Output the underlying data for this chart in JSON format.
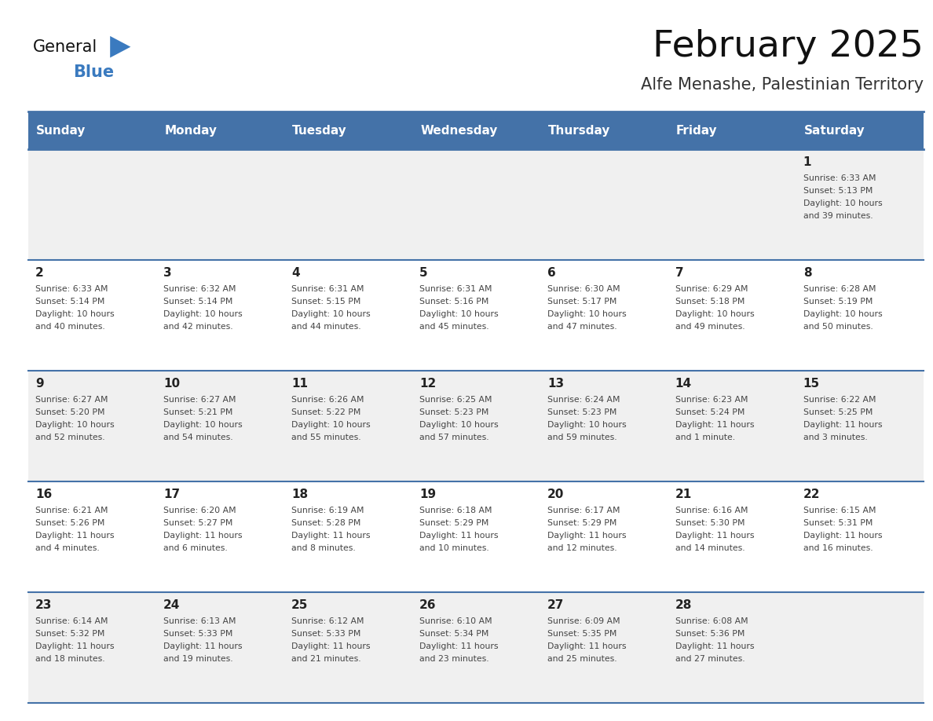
{
  "title": "February 2025",
  "subtitle": "Alfe Menashe, Palestinian Territory",
  "days_of_week": [
    "Sunday",
    "Monday",
    "Tuesday",
    "Wednesday",
    "Thursday",
    "Friday",
    "Saturday"
  ],
  "header_bg": "#4472a8",
  "header_text": "#ffffff",
  "cell_bg_odd": "#f0f0f0",
  "cell_bg_even": "#ffffff",
  "border_color": "#4472a8",
  "text_color": "#444444",
  "day_num_color": "#222222",
  "calendar_data": [
    [
      null,
      null,
      null,
      null,
      null,
      null,
      {
        "day": 1,
        "sunrise": "6:33 AM",
        "sunset": "5:13 PM",
        "daylight": "10 hours and 39 minutes."
      }
    ],
    [
      {
        "day": 2,
        "sunrise": "6:33 AM",
        "sunset": "5:14 PM",
        "daylight": "10 hours and 40 minutes."
      },
      {
        "day": 3,
        "sunrise": "6:32 AM",
        "sunset": "5:14 PM",
        "daylight": "10 hours and 42 minutes."
      },
      {
        "day": 4,
        "sunrise": "6:31 AM",
        "sunset": "5:15 PM",
        "daylight": "10 hours and 44 minutes."
      },
      {
        "day": 5,
        "sunrise": "6:31 AM",
        "sunset": "5:16 PM",
        "daylight": "10 hours and 45 minutes."
      },
      {
        "day": 6,
        "sunrise": "6:30 AM",
        "sunset": "5:17 PM",
        "daylight": "10 hours and 47 minutes."
      },
      {
        "day": 7,
        "sunrise": "6:29 AM",
        "sunset": "5:18 PM",
        "daylight": "10 hours and 49 minutes."
      },
      {
        "day": 8,
        "sunrise": "6:28 AM",
        "sunset": "5:19 PM",
        "daylight": "10 hours and 50 minutes."
      }
    ],
    [
      {
        "day": 9,
        "sunrise": "6:27 AM",
        "sunset": "5:20 PM",
        "daylight": "10 hours and 52 minutes."
      },
      {
        "day": 10,
        "sunrise": "6:27 AM",
        "sunset": "5:21 PM",
        "daylight": "10 hours and 54 minutes."
      },
      {
        "day": 11,
        "sunrise": "6:26 AM",
        "sunset": "5:22 PM",
        "daylight": "10 hours and 55 minutes."
      },
      {
        "day": 12,
        "sunrise": "6:25 AM",
        "sunset": "5:23 PM",
        "daylight": "10 hours and 57 minutes."
      },
      {
        "day": 13,
        "sunrise": "6:24 AM",
        "sunset": "5:23 PM",
        "daylight": "10 hours and 59 minutes."
      },
      {
        "day": 14,
        "sunrise": "6:23 AM",
        "sunset": "5:24 PM",
        "daylight": "11 hours and 1 minute."
      },
      {
        "day": 15,
        "sunrise": "6:22 AM",
        "sunset": "5:25 PM",
        "daylight": "11 hours and 3 minutes."
      }
    ],
    [
      {
        "day": 16,
        "sunrise": "6:21 AM",
        "sunset": "5:26 PM",
        "daylight": "11 hours and 4 minutes."
      },
      {
        "day": 17,
        "sunrise": "6:20 AM",
        "sunset": "5:27 PM",
        "daylight": "11 hours and 6 minutes."
      },
      {
        "day": 18,
        "sunrise": "6:19 AM",
        "sunset": "5:28 PM",
        "daylight": "11 hours and 8 minutes."
      },
      {
        "day": 19,
        "sunrise": "6:18 AM",
        "sunset": "5:29 PM",
        "daylight": "11 hours and 10 minutes."
      },
      {
        "day": 20,
        "sunrise": "6:17 AM",
        "sunset": "5:29 PM",
        "daylight": "11 hours and 12 minutes."
      },
      {
        "day": 21,
        "sunrise": "6:16 AM",
        "sunset": "5:30 PM",
        "daylight": "11 hours and 14 minutes."
      },
      {
        "day": 22,
        "sunrise": "6:15 AM",
        "sunset": "5:31 PM",
        "daylight": "11 hours and 16 minutes."
      }
    ],
    [
      {
        "day": 23,
        "sunrise": "6:14 AM",
        "sunset": "5:32 PM",
        "daylight": "11 hours and 18 minutes."
      },
      {
        "day": 24,
        "sunrise": "6:13 AM",
        "sunset": "5:33 PM",
        "daylight": "11 hours and 19 minutes."
      },
      {
        "day": 25,
        "sunrise": "6:12 AM",
        "sunset": "5:33 PM",
        "daylight": "11 hours and 21 minutes."
      },
      {
        "day": 26,
        "sunrise": "6:10 AM",
        "sunset": "5:34 PM",
        "daylight": "11 hours and 23 minutes."
      },
      {
        "day": 27,
        "sunrise": "6:09 AM",
        "sunset": "5:35 PM",
        "daylight": "11 hours and 25 minutes."
      },
      {
        "day": 28,
        "sunrise": "6:08 AM",
        "sunset": "5:36 PM",
        "daylight": "11 hours and 27 minutes."
      },
      null
    ]
  ]
}
